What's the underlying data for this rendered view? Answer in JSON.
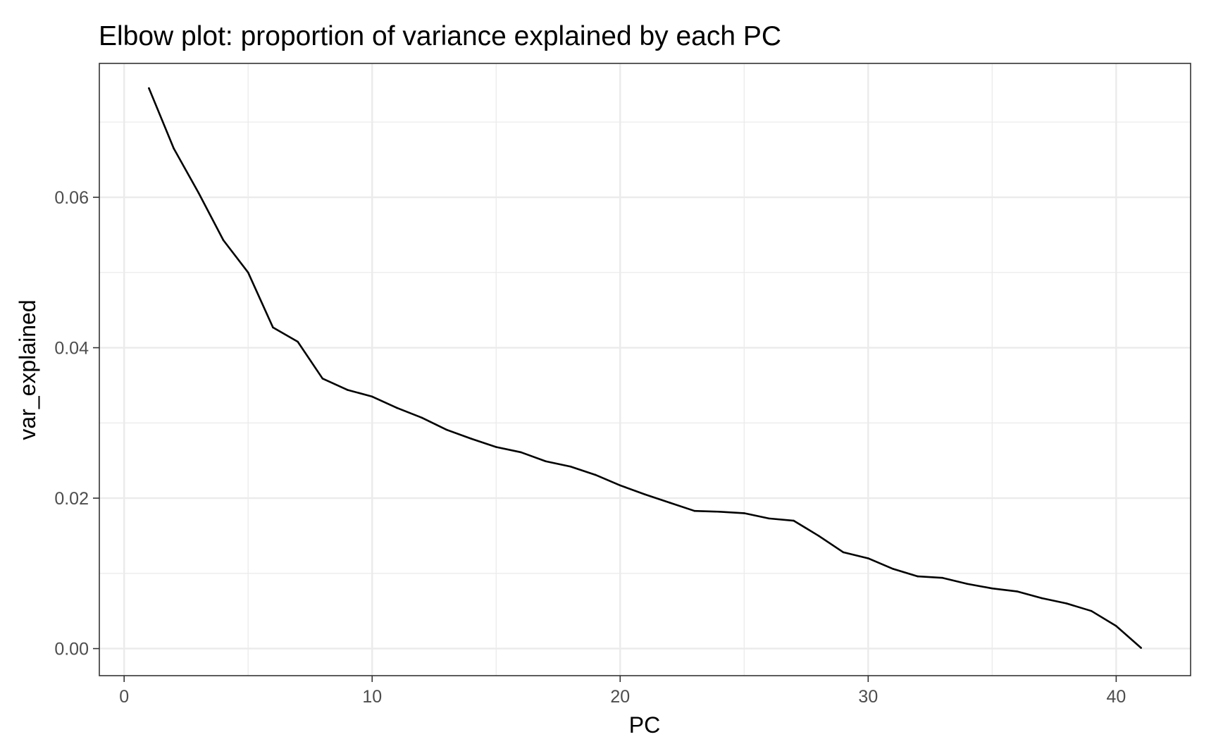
{
  "chart_data": {
    "type": "line",
    "title": "Elbow plot: proportion of variance explained by each PC",
    "xlabel": "PC",
    "ylabel": "var_explained",
    "xlim": [
      -1,
      43
    ],
    "ylim": [
      -0.0036,
      0.0778
    ],
    "x_ticks": [
      0,
      10,
      20,
      30,
      40
    ],
    "x_tick_labels": [
      "0",
      "10",
      "20",
      "30",
      "40"
    ],
    "y_ticks": [
      0,
      0.02,
      0.04,
      0.06
    ],
    "y_tick_labels": [
      "0.00",
      "0.02",
      "0.04",
      "0.06"
    ],
    "x_minor_ticks": [
      5,
      15,
      25,
      35
    ],
    "y_minor_ticks": [
      0.01,
      0.03,
      0.05,
      0.07
    ],
    "grid": true,
    "series": [
      {
        "name": "var_explained",
        "color": "#000000",
        "x": [
          1,
          2,
          3,
          4,
          5,
          6,
          7,
          8,
          9,
          10,
          11,
          12,
          13,
          14,
          15,
          16,
          17,
          18,
          19,
          20,
          21,
          22,
          23,
          24,
          25,
          26,
          27,
          28,
          29,
          30,
          31,
          32,
          33,
          34,
          35,
          36,
          37,
          38,
          39,
          40,
          41
        ],
        "values": [
          0.0745,
          0.0665,
          0.0606,
          0.0543,
          0.05,
          0.0427,
          0.0408,
          0.0359,
          0.0344,
          0.0335,
          0.032,
          0.0307,
          0.0291,
          0.0279,
          0.0268,
          0.0261,
          0.0249,
          0.0242,
          0.0231,
          0.0217,
          0.0205,
          0.0194,
          0.0183,
          0.0182,
          0.018,
          0.0173,
          0.017,
          0.015,
          0.0128,
          0.012,
          0.0106,
          0.0096,
          0.0094,
          0.0086,
          0.008,
          0.0076,
          0.0067,
          0.006,
          0.005,
          0.003,
          0.0001
        ]
      }
    ]
  }
}
